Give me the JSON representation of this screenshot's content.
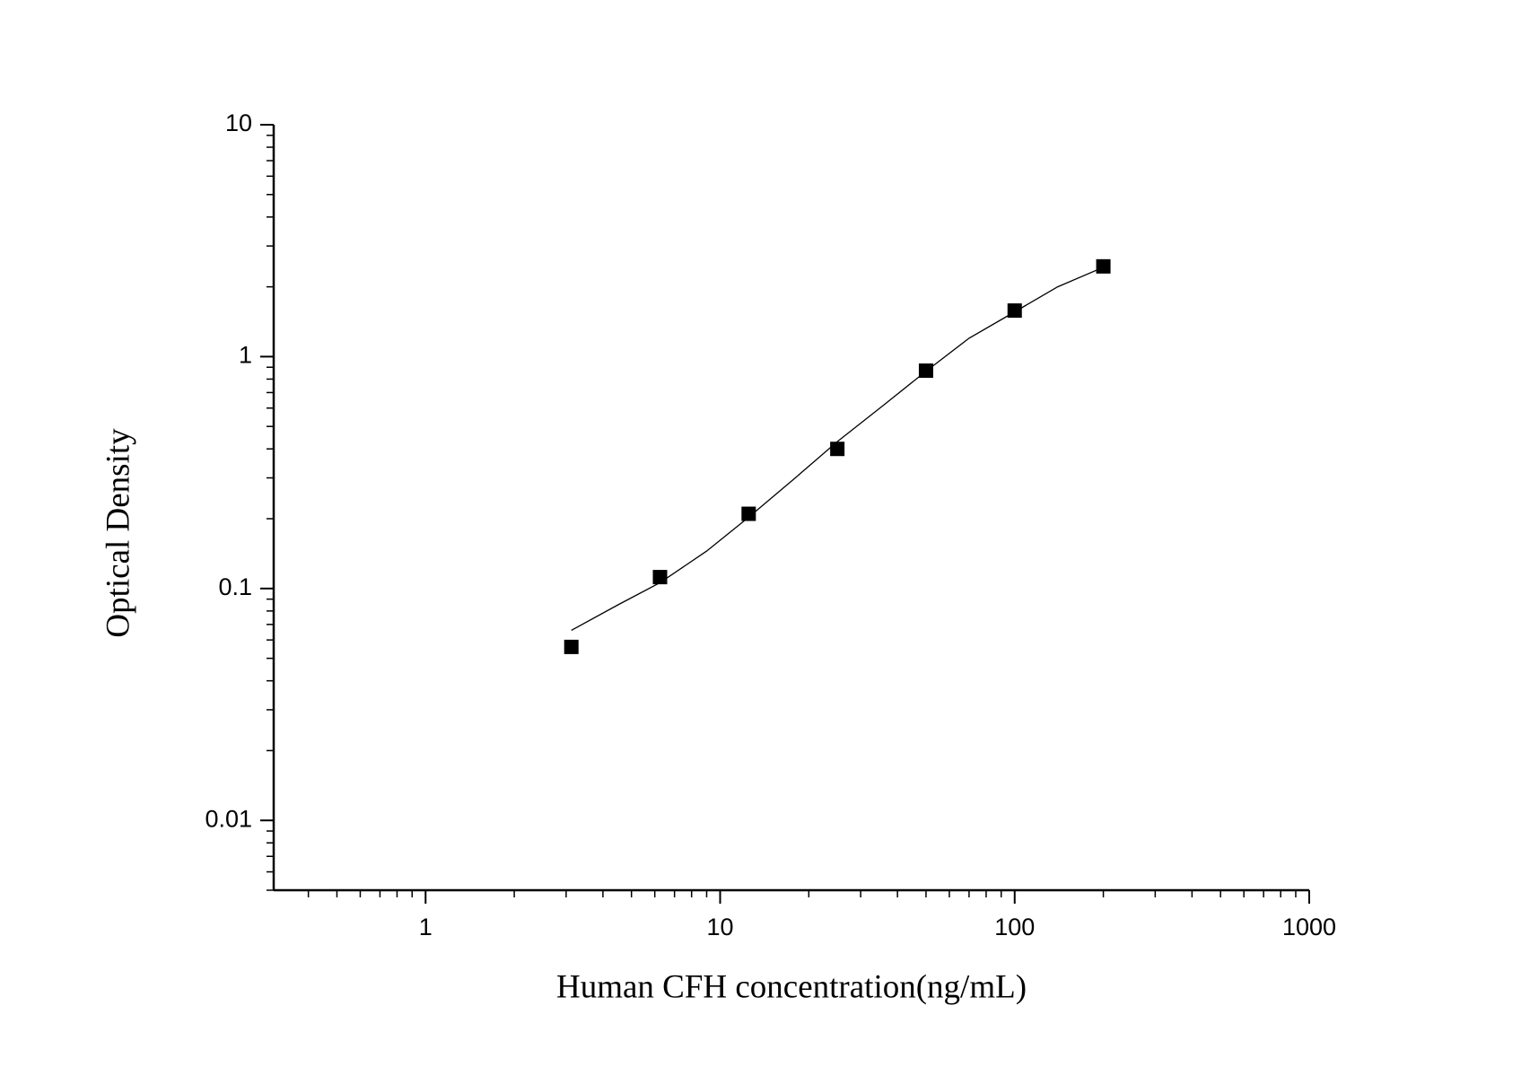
{
  "chart_data": {
    "type": "scatter",
    "x_label": "Human CFH concentration(ng/mL)",
    "y_label": "Optical Density",
    "log_x": true,
    "log_y": true,
    "xlim": [
      0.305,
      1000
    ],
    "ylim": [
      0.005,
      10
    ],
    "xticks": [
      1,
      10,
      100,
      1000
    ],
    "yticks": [
      0.01,
      0.1,
      1,
      10
    ],
    "series": [
      {
        "type": "scatter",
        "color": "#000000",
        "x": [
          3.125,
          6.25,
          12.5,
          25,
          50,
          100,
          200
        ],
        "values": [
          0.056,
          0.112,
          0.21,
          0.4,
          0.87,
          1.58,
          2.45
        ]
      },
      {
        "type": "line",
        "color": "#000000",
        "x": [
          3.125,
          4.5,
          6.25,
          9,
          12.5,
          18,
          25,
          36,
          50,
          70,
          100,
          140,
          200
        ],
        "values": [
          0.066,
          0.085,
          0.106,
          0.145,
          0.203,
          0.3,
          0.43,
          0.62,
          0.865,
          1.2,
          1.56,
          2.0,
          2.43
        ]
      }
    ]
  }
}
